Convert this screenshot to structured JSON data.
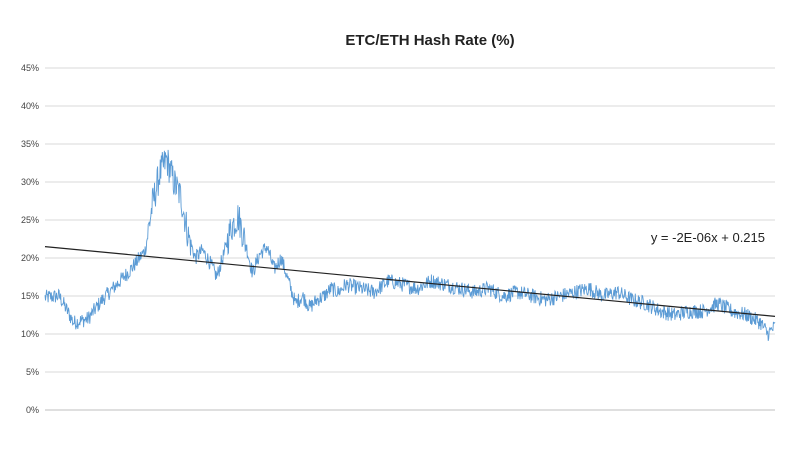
{
  "chart_data": {
    "type": "line",
    "title": "ETC/ETH Hash Rate (%)",
    "xlabel": "",
    "ylabel": "",
    "ylim": [
      0,
      0.45
    ],
    "yticks": [
      {
        "value": 0.0,
        "label": "0%"
      },
      {
        "value": 0.05,
        "label": "5%"
      },
      {
        "value": 0.1,
        "label": "10%"
      },
      {
        "value": 0.15,
        "label": "15%"
      },
      {
        "value": 0.2,
        "label": "20%"
      },
      {
        "value": 0.25,
        "label": "25%"
      },
      {
        "value": 0.3,
        "label": "30%"
      },
      {
        "value": 0.35,
        "label": "35%"
      },
      {
        "value": 0.4,
        "label": "40%"
      },
      {
        "value": 0.45,
        "label": "45%"
      }
    ],
    "grid": true,
    "xlim": [
      0,
      51000
    ],
    "series": [
      {
        "color": "#5b9bd5",
        "x": [
          0,
          1000,
          2000,
          3000,
          4000,
          5000,
          6000,
          7000,
          7500,
          8000,
          8500,
          9000,
          9500,
          10000,
          10500,
          11000,
          11500,
          12000,
          12500,
          13000,
          13500,
          14000,
          14500,
          15000,
          15500,
          16000,
          16500,
          17000,
          17500,
          18000,
          18500,
          19000,
          19500,
          20000,
          20500,
          21000,
          22000,
          23000,
          24000,
          25000,
          26000,
          27000,
          28000,
          29000,
          30000,
          31000,
          32000,
          33000,
          34000,
          35000,
          36000,
          37000,
          38000,
          39000,
          40000,
          41000,
          42000,
          43000,
          44000,
          45000,
          46000,
          47000,
          48000,
          49000,
          50000,
          50500,
          51000
        ],
        "y": [
          0.148,
          0.15,
          0.115,
          0.12,
          0.145,
          0.165,
          0.185,
          0.21,
          0.27,
          0.31,
          0.33,
          0.3,
          0.28,
          0.23,
          0.2,
          0.21,
          0.195,
          0.175,
          0.205,
          0.24,
          0.255,
          0.22,
          0.18,
          0.205,
          0.215,
          0.185,
          0.2,
          0.17,
          0.14,
          0.15,
          0.135,
          0.145,
          0.15,
          0.16,
          0.155,
          0.165,
          0.16,
          0.155,
          0.17,
          0.165,
          0.16,
          0.17,
          0.165,
          0.16,
          0.155,
          0.16,
          0.15,
          0.155,
          0.15,
          0.145,
          0.15,
          0.155,
          0.16,
          0.15,
          0.155,
          0.145,
          0.14,
          0.13,
          0.125,
          0.13,
          0.13,
          0.14,
          0.13,
          0.125,
          0.115,
          0.1,
          0.11
        ],
        "noise": 0.01
      }
    ],
    "trendline": {
      "type": "linear",
      "slope": -1.8e-06,
      "intercept": 0.215,
      "label": "y = -2E-06x + 0.215",
      "color": "#222222"
    }
  }
}
